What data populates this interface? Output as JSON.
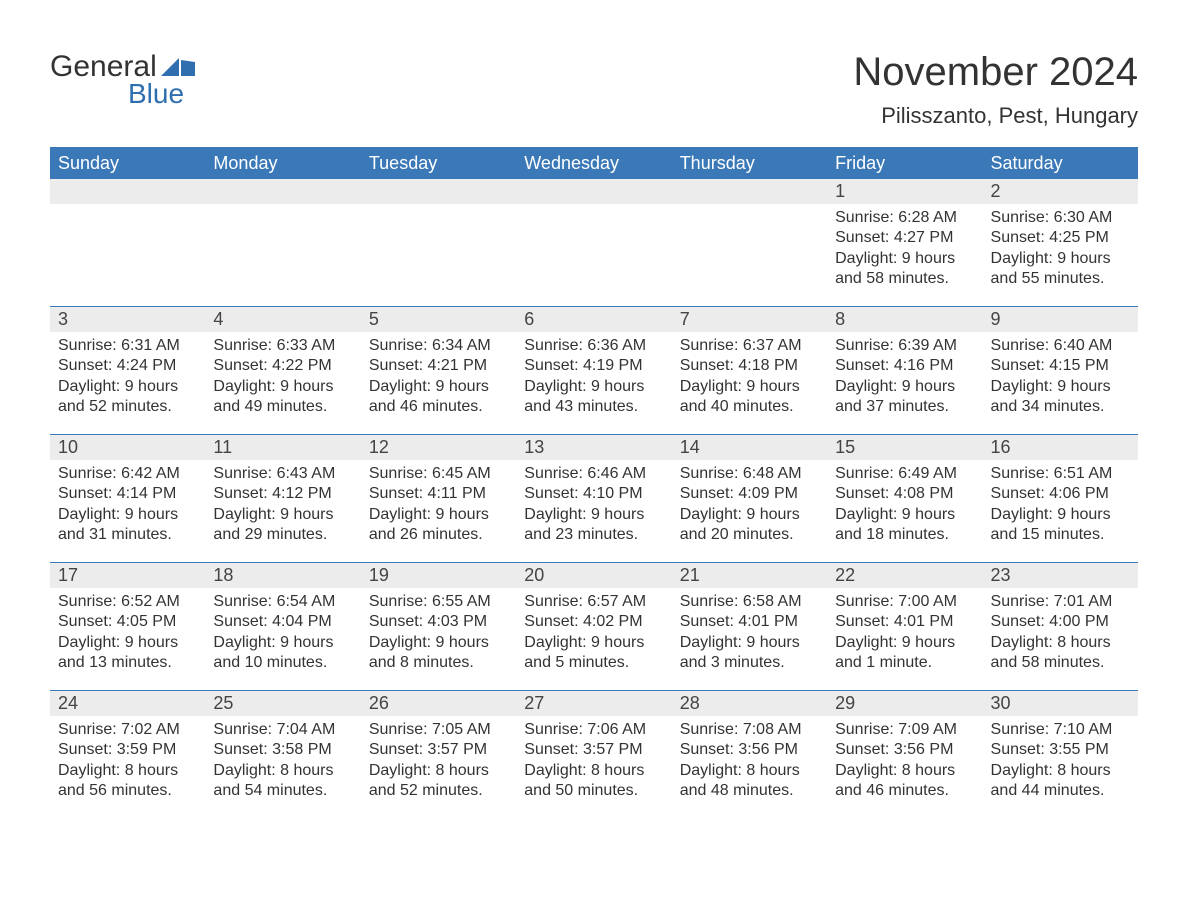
{
  "logo": {
    "text1": "General",
    "text2": "Blue"
  },
  "title": "November 2024",
  "location": "Pilisszanto, Pest, Hungary",
  "colors": {
    "header_bg": "#3a78b7",
    "header_text": "#ffffff",
    "daynum_bg": "#ececec",
    "border": "#3a78b7",
    "text": "#333333",
    "logo_blue": "#2f6fb0"
  },
  "weekdays": [
    "Sunday",
    "Monday",
    "Tuesday",
    "Wednesday",
    "Thursday",
    "Friday",
    "Saturday"
  ],
  "weeks": [
    [
      null,
      null,
      null,
      null,
      null,
      {
        "day": "1",
        "sunrise": "Sunrise: 6:28 AM",
        "sunset": "Sunset: 4:27 PM",
        "daylight": "Daylight: 9 hours and 58 minutes."
      },
      {
        "day": "2",
        "sunrise": "Sunrise: 6:30 AM",
        "sunset": "Sunset: 4:25 PM",
        "daylight": "Daylight: 9 hours and 55 minutes."
      }
    ],
    [
      {
        "day": "3",
        "sunrise": "Sunrise: 6:31 AM",
        "sunset": "Sunset: 4:24 PM",
        "daylight": "Daylight: 9 hours and 52 minutes."
      },
      {
        "day": "4",
        "sunrise": "Sunrise: 6:33 AM",
        "sunset": "Sunset: 4:22 PM",
        "daylight": "Daylight: 9 hours and 49 minutes."
      },
      {
        "day": "5",
        "sunrise": "Sunrise: 6:34 AM",
        "sunset": "Sunset: 4:21 PM",
        "daylight": "Daylight: 9 hours and 46 minutes."
      },
      {
        "day": "6",
        "sunrise": "Sunrise: 6:36 AM",
        "sunset": "Sunset: 4:19 PM",
        "daylight": "Daylight: 9 hours and 43 minutes."
      },
      {
        "day": "7",
        "sunrise": "Sunrise: 6:37 AM",
        "sunset": "Sunset: 4:18 PM",
        "daylight": "Daylight: 9 hours and 40 minutes."
      },
      {
        "day": "8",
        "sunrise": "Sunrise: 6:39 AM",
        "sunset": "Sunset: 4:16 PM",
        "daylight": "Daylight: 9 hours and 37 minutes."
      },
      {
        "day": "9",
        "sunrise": "Sunrise: 6:40 AM",
        "sunset": "Sunset: 4:15 PM",
        "daylight": "Daylight: 9 hours and 34 minutes."
      }
    ],
    [
      {
        "day": "10",
        "sunrise": "Sunrise: 6:42 AM",
        "sunset": "Sunset: 4:14 PM",
        "daylight": "Daylight: 9 hours and 31 minutes."
      },
      {
        "day": "11",
        "sunrise": "Sunrise: 6:43 AM",
        "sunset": "Sunset: 4:12 PM",
        "daylight": "Daylight: 9 hours and 29 minutes."
      },
      {
        "day": "12",
        "sunrise": "Sunrise: 6:45 AM",
        "sunset": "Sunset: 4:11 PM",
        "daylight": "Daylight: 9 hours and 26 minutes."
      },
      {
        "day": "13",
        "sunrise": "Sunrise: 6:46 AM",
        "sunset": "Sunset: 4:10 PM",
        "daylight": "Daylight: 9 hours and 23 minutes."
      },
      {
        "day": "14",
        "sunrise": "Sunrise: 6:48 AM",
        "sunset": "Sunset: 4:09 PM",
        "daylight": "Daylight: 9 hours and 20 minutes."
      },
      {
        "day": "15",
        "sunrise": "Sunrise: 6:49 AM",
        "sunset": "Sunset: 4:08 PM",
        "daylight": "Daylight: 9 hours and 18 minutes."
      },
      {
        "day": "16",
        "sunrise": "Sunrise: 6:51 AM",
        "sunset": "Sunset: 4:06 PM",
        "daylight": "Daylight: 9 hours and 15 minutes."
      }
    ],
    [
      {
        "day": "17",
        "sunrise": "Sunrise: 6:52 AM",
        "sunset": "Sunset: 4:05 PM",
        "daylight": "Daylight: 9 hours and 13 minutes."
      },
      {
        "day": "18",
        "sunrise": "Sunrise: 6:54 AM",
        "sunset": "Sunset: 4:04 PM",
        "daylight": "Daylight: 9 hours and 10 minutes."
      },
      {
        "day": "19",
        "sunrise": "Sunrise: 6:55 AM",
        "sunset": "Sunset: 4:03 PM",
        "daylight": "Daylight: 9 hours and 8 minutes."
      },
      {
        "day": "20",
        "sunrise": "Sunrise: 6:57 AM",
        "sunset": "Sunset: 4:02 PM",
        "daylight": "Daylight: 9 hours and 5 minutes."
      },
      {
        "day": "21",
        "sunrise": "Sunrise: 6:58 AM",
        "sunset": "Sunset: 4:01 PM",
        "daylight": "Daylight: 9 hours and 3 minutes."
      },
      {
        "day": "22",
        "sunrise": "Sunrise: 7:00 AM",
        "sunset": "Sunset: 4:01 PM",
        "daylight": "Daylight: 9 hours and 1 minute."
      },
      {
        "day": "23",
        "sunrise": "Sunrise: 7:01 AM",
        "sunset": "Sunset: 4:00 PM",
        "daylight": "Daylight: 8 hours and 58 minutes."
      }
    ],
    [
      {
        "day": "24",
        "sunrise": "Sunrise: 7:02 AM",
        "sunset": "Sunset: 3:59 PM",
        "daylight": "Daylight: 8 hours and 56 minutes."
      },
      {
        "day": "25",
        "sunrise": "Sunrise: 7:04 AM",
        "sunset": "Sunset: 3:58 PM",
        "daylight": "Daylight: 8 hours and 54 minutes."
      },
      {
        "day": "26",
        "sunrise": "Sunrise: 7:05 AM",
        "sunset": "Sunset: 3:57 PM",
        "daylight": "Daylight: 8 hours and 52 minutes."
      },
      {
        "day": "27",
        "sunrise": "Sunrise: 7:06 AM",
        "sunset": "Sunset: 3:57 PM",
        "daylight": "Daylight: 8 hours and 50 minutes."
      },
      {
        "day": "28",
        "sunrise": "Sunrise: 7:08 AM",
        "sunset": "Sunset: 3:56 PM",
        "daylight": "Daylight: 8 hours and 48 minutes."
      },
      {
        "day": "29",
        "sunrise": "Sunrise: 7:09 AM",
        "sunset": "Sunset: 3:56 PM",
        "daylight": "Daylight: 8 hours and 46 minutes."
      },
      {
        "day": "30",
        "sunrise": "Sunrise: 7:10 AM",
        "sunset": "Sunset: 3:55 PM",
        "daylight": "Daylight: 8 hours and 44 minutes."
      }
    ]
  ]
}
